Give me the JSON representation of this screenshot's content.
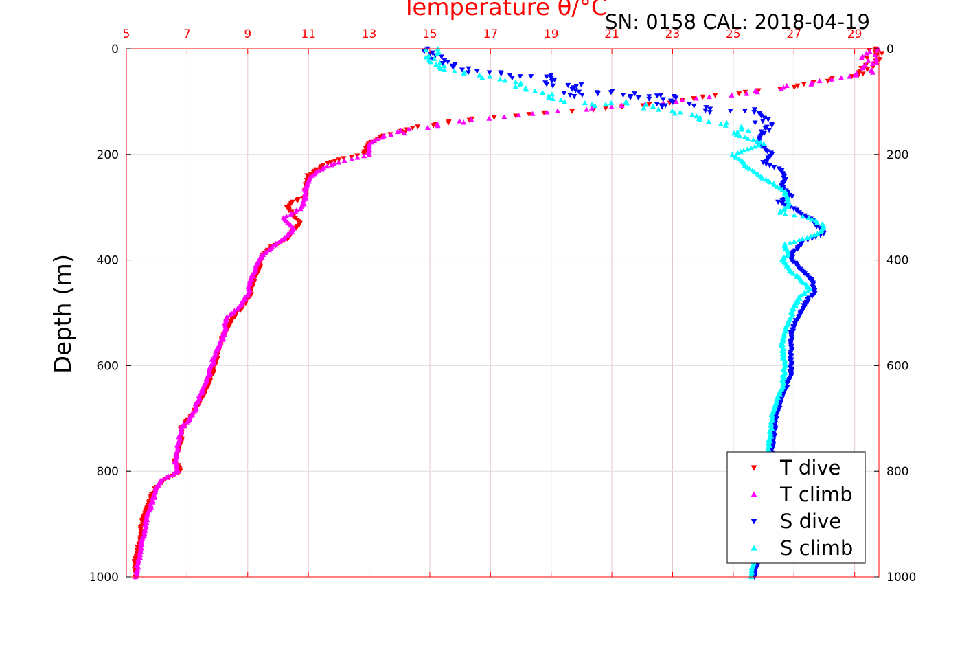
{
  "chart_data": {
    "type": "scatter",
    "title": "Temperature θ/°C",
    "annotation": "SN: 0158  CAL: 2018-04-19",
    "xlabel": "Temperature θ/°C",
    "ylabel": "Depth (m)",
    "xlim": [
      5,
      29.8
    ],
    "ylim": [
      1000,
      0
    ],
    "x_axis_position": "top",
    "y_axis_reversed": true,
    "grid": true,
    "legend_position": "bottom-right",
    "x_ticks": [
      "5",
      "7",
      "9",
      "11",
      "13",
      "15",
      "17",
      "19",
      "21",
      "23",
      "25",
      "27",
      "29"
    ],
    "y_ticks": [
      "0",
      "200",
      "400",
      "600",
      "800",
      "1000"
    ],
    "colors": {
      "axis": "#ff0000",
      "grid": "#e6c8cc",
      "t_dive": "#ff0000",
      "t_climb": "#ff00ff",
      "s_dive": "#0000ff",
      "s_climb": "#00ffff"
    },
    "series": [
      {
        "name": "T dive",
        "marker": "triangle-down",
        "color": "#ff0000",
        "points": [
          [
            29.6,
            0
          ],
          [
            29.6,
            20
          ],
          [
            29.3,
            45
          ],
          [
            28.5,
            55
          ],
          [
            27.2,
            70
          ],
          [
            25.0,
            85
          ],
          [
            23.0,
            100
          ],
          [
            21.5,
            110
          ],
          [
            19.5,
            118
          ],
          [
            17.0,
            130
          ],
          [
            15.5,
            140
          ],
          [
            14.5,
            150
          ],
          [
            13.5,
            165
          ],
          [
            13.0,
            180
          ],
          [
            12.8,
            200
          ],
          [
            12.0,
            210
          ],
          [
            11.5,
            220
          ],
          [
            11.0,
            240
          ],
          [
            10.9,
            260
          ],
          [
            10.9,
            280
          ],
          [
            10.5,
            290
          ],
          [
            10.3,
            300
          ],
          [
            10.7,
            330
          ],
          [
            10.3,
            360
          ],
          [
            9.8,
            375
          ],
          [
            9.5,
            390
          ],
          [
            9.4,
            410
          ],
          [
            9.2,
            440
          ],
          [
            9.1,
            465
          ],
          [
            8.8,
            490
          ],
          [
            8.5,
            510
          ],
          [
            8.2,
            545
          ],
          [
            8.0,
            580
          ],
          [
            7.8,
            620
          ],
          [
            7.5,
            660
          ],
          [
            7.2,
            690
          ],
          [
            6.8,
            720
          ],
          [
            6.8,
            750
          ],
          [
            6.6,
            780
          ],
          [
            6.8,
            800
          ],
          [
            6.3,
            815
          ],
          [
            6.0,
            830
          ],
          [
            5.8,
            850
          ],
          [
            5.6,
            880
          ],
          [
            5.5,
            910
          ],
          [
            5.4,
            940
          ],
          [
            5.3,
            970
          ],
          [
            5.3,
            1000
          ]
        ]
      },
      {
        "name": "T climb",
        "marker": "triangle-up",
        "color": "#ff00ff",
        "points": [
          [
            29.6,
            0
          ],
          [
            29.5,
            20
          ],
          [
            29.5,
            45
          ],
          [
            28.8,
            55
          ],
          [
            27.0,
            70
          ],
          [
            25.0,
            88
          ],
          [
            23.0,
            100
          ],
          [
            21.0,
            110
          ],
          [
            19.0,
            120
          ],
          [
            17.0,
            132
          ],
          [
            15.5,
            142
          ],
          [
            14.5,
            152
          ],
          [
            13.5,
            165
          ],
          [
            13.0,
            180
          ],
          [
            13.0,
            200
          ],
          [
            12.0,
            215
          ],
          [
            11.5,
            225
          ],
          [
            11.1,
            240
          ],
          [
            10.9,
            260
          ],
          [
            10.9,
            280
          ],
          [
            10.8,
            300
          ],
          [
            10.2,
            320
          ],
          [
            10.5,
            340
          ],
          [
            10.2,
            360
          ],
          [
            9.8,
            375
          ],
          [
            9.5,
            390
          ],
          [
            9.3,
            410
          ],
          [
            9.1,
            440
          ],
          [
            9.0,
            465
          ],
          [
            8.7,
            490
          ],
          [
            8.3,
            510
          ],
          [
            8.2,
            545
          ],
          [
            7.9,
            580
          ],
          [
            7.7,
            620
          ],
          [
            7.4,
            660
          ],
          [
            7.2,
            690
          ],
          [
            6.8,
            720
          ],
          [
            6.7,
            750
          ],
          [
            6.6,
            780
          ],
          [
            6.7,
            800
          ],
          [
            6.2,
            815
          ],
          [
            6.0,
            830
          ],
          [
            5.9,
            850
          ],
          [
            5.7,
            880
          ],
          [
            5.6,
            910
          ],
          [
            5.5,
            940
          ],
          [
            5.4,
            970
          ],
          [
            5.3,
            1000
          ]
        ]
      },
      {
        "name": "S dive",
        "marker": "triangle-down",
        "color": "#0000ff",
        "points": [
          [
            14.7,
            0
          ],
          [
            14.9,
            10
          ],
          [
            15.4,
            20
          ],
          [
            15.8,
            30
          ],
          [
            16.2,
            40
          ],
          [
            16.5,
            45
          ],
          [
            17.4,
            45
          ],
          [
            18.0,
            55
          ],
          [
            19.0,
            50
          ],
          [
            19.0,
            70
          ],
          [
            20.0,
            68
          ],
          [
            19.5,
            90
          ],
          [
            20.5,
            85
          ],
          [
            21.0,
            80
          ],
          [
            21.5,
            85
          ],
          [
            22.0,
            95
          ],
          [
            22.5,
            88
          ],
          [
            23.0,
            90
          ],
          [
            22.6,
            110
          ],
          [
            23.5,
            105
          ],
          [
            24.5,
            120
          ],
          [
            25.5,
            115
          ],
          [
            25.8,
            125
          ],
          [
            26.0,
            140
          ],
          [
            26.5,
            145
          ],
          [
            26.0,
            160
          ],
          [
            25.8,
            180
          ],
          [
            26.3,
            200
          ],
          [
            26.0,
            215
          ],
          [
            26.6,
            230
          ],
          [
            26.7,
            250
          ],
          [
            26.6,
            260
          ],
          [
            26.9,
            280
          ],
          [
            26.5,
            290
          ],
          [
            26.9,
            300
          ],
          [
            27.2,
            310
          ],
          [
            27.6,
            325
          ],
          [
            28.0,
            350
          ],
          [
            27.3,
            365
          ],
          [
            27.0,
            385
          ],
          [
            26.9,
            400
          ],
          [
            27.3,
            420
          ],
          [
            27.6,
            440
          ],
          [
            27.7,
            460
          ],
          [
            27.4,
            480
          ],
          [
            27.2,
            500
          ],
          [
            26.9,
            540
          ],
          [
            26.9,
            580
          ],
          [
            26.9,
            620
          ],
          [
            26.6,
            660
          ],
          [
            26.4,
            700
          ],
          [
            26.3,
            750
          ],
          [
            26.2,
            800
          ],
          [
            26.1,
            850
          ],
          [
            26.0,
            900
          ],
          [
            25.9,
            950
          ],
          [
            25.7,
            1000
          ]
        ]
      },
      {
        "name": "S climb",
        "marker": "triangle-up",
        "color": "#00ffff",
        "points": [
          [
            15.0,
            0
          ],
          [
            15.0,
            10
          ],
          [
            15.0,
            25
          ],
          [
            15.4,
            35
          ],
          [
            16.0,
            45
          ],
          [
            16.5,
            50
          ],
          [
            17.5,
            60
          ],
          [
            18.5,
            80
          ],
          [
            19.0,
            92
          ],
          [
            19.5,
            100
          ],
          [
            20.5,
            108
          ],
          [
            21.5,
            100
          ],
          [
            22.5,
            115
          ],
          [
            23.0,
            120
          ],
          [
            23.8,
            130
          ],
          [
            24.5,
            140
          ],
          [
            25.5,
            150
          ],
          [
            25.0,
            160
          ],
          [
            25.5,
            170
          ],
          [
            26.0,
            180
          ],
          [
            25.5,
            190
          ],
          [
            25.0,
            200
          ],
          [
            25.3,
            215
          ],
          [
            25.6,
            230
          ],
          [
            26.0,
            245
          ],
          [
            26.3,
            255
          ],
          [
            26.7,
            270
          ],
          [
            26.8,
            285
          ],
          [
            26.8,
            300
          ],
          [
            26.5,
            310
          ],
          [
            27.5,
            320
          ],
          [
            28.0,
            335
          ],
          [
            27.8,
            350
          ],
          [
            27.3,
            360
          ],
          [
            26.7,
            370
          ],
          [
            26.8,
            390
          ],
          [
            26.6,
            400
          ],
          [
            26.9,
            420
          ],
          [
            27.3,
            440
          ],
          [
            27.5,
            455
          ],
          [
            27.2,
            470
          ],
          [
            27.0,
            490
          ],
          [
            26.8,
            520
          ],
          [
            26.6,
            560
          ],
          [
            26.7,
            600
          ],
          [
            26.6,
            640
          ],
          [
            26.3,
            690
          ],
          [
            26.2,
            740
          ],
          [
            26.1,
            790
          ],
          [
            25.9,
            850
          ],
          [
            25.8,
            910
          ],
          [
            25.7,
            960
          ],
          [
            25.6,
            1000
          ]
        ]
      }
    ]
  }
}
